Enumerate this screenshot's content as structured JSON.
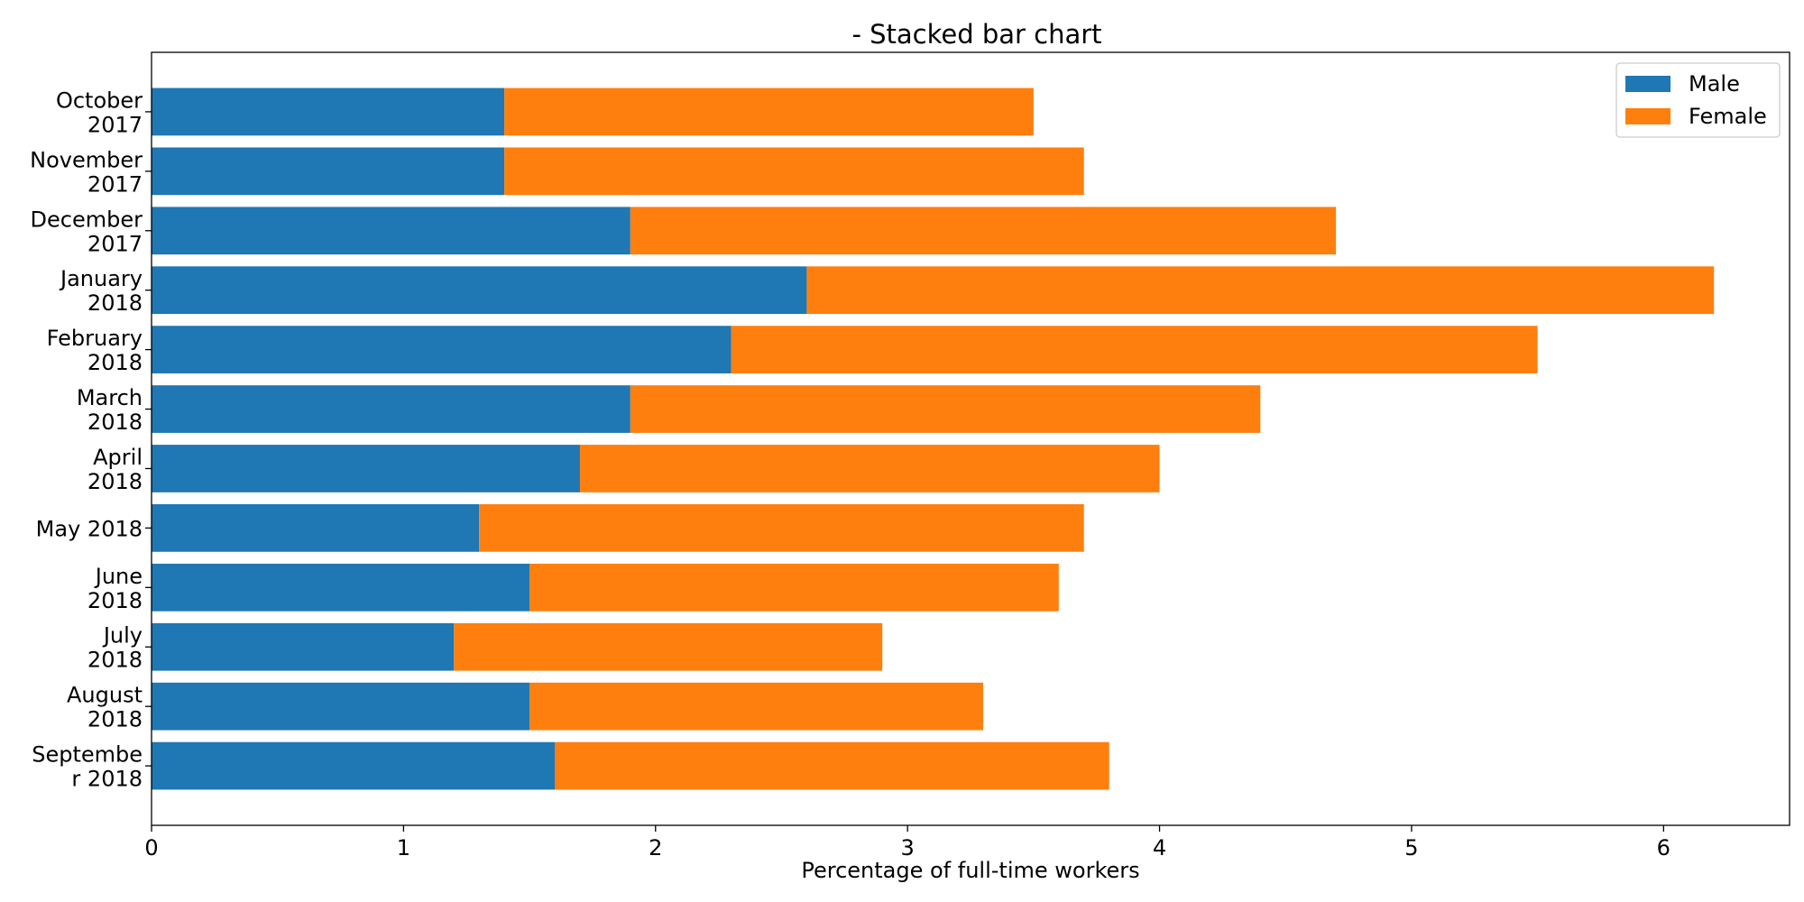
{
  "chart_data": {
    "type": "bar",
    "orientation": "horizontal",
    "stacked": true,
    "title": "- Stacked bar chart",
    "xlabel": "Percentage of full-time workers",
    "ylabel": "",
    "xlim": [
      0,
      6.5
    ],
    "xticks": [
      "0",
      "1",
      "2",
      "3",
      "4",
      "5",
      "6"
    ],
    "categories": [
      [
        "October",
        "2017"
      ],
      [
        "November",
        "2017"
      ],
      [
        "December",
        "2017"
      ],
      [
        "January",
        "2018"
      ],
      [
        "February",
        "2018"
      ],
      [
        "March",
        "2018"
      ],
      [
        "April",
        "2018"
      ],
      [
        "May 2018"
      ],
      [
        "June",
        "2018"
      ],
      [
        "July",
        "2018"
      ],
      [
        "August",
        "2018"
      ],
      [
        "Septembe",
        "r 2018"
      ]
    ],
    "series": [
      {
        "name": "Male",
        "color": "#1f77b4",
        "values": [
          1.4,
          1.4,
          1.9,
          2.6,
          2.3,
          1.9,
          1.7,
          1.3,
          1.5,
          1.2,
          1.5,
          1.6
        ]
      },
      {
        "name": "Female",
        "color": "#ff7f0e",
        "values": [
          2.1,
          2.3,
          2.8,
          3.6,
          3.2,
          2.5,
          2.3,
          2.4,
          2.1,
          1.7,
          1.8,
          2.2
        ]
      }
    ],
    "legend": {
      "position": "top-right"
    },
    "grid": false
  }
}
